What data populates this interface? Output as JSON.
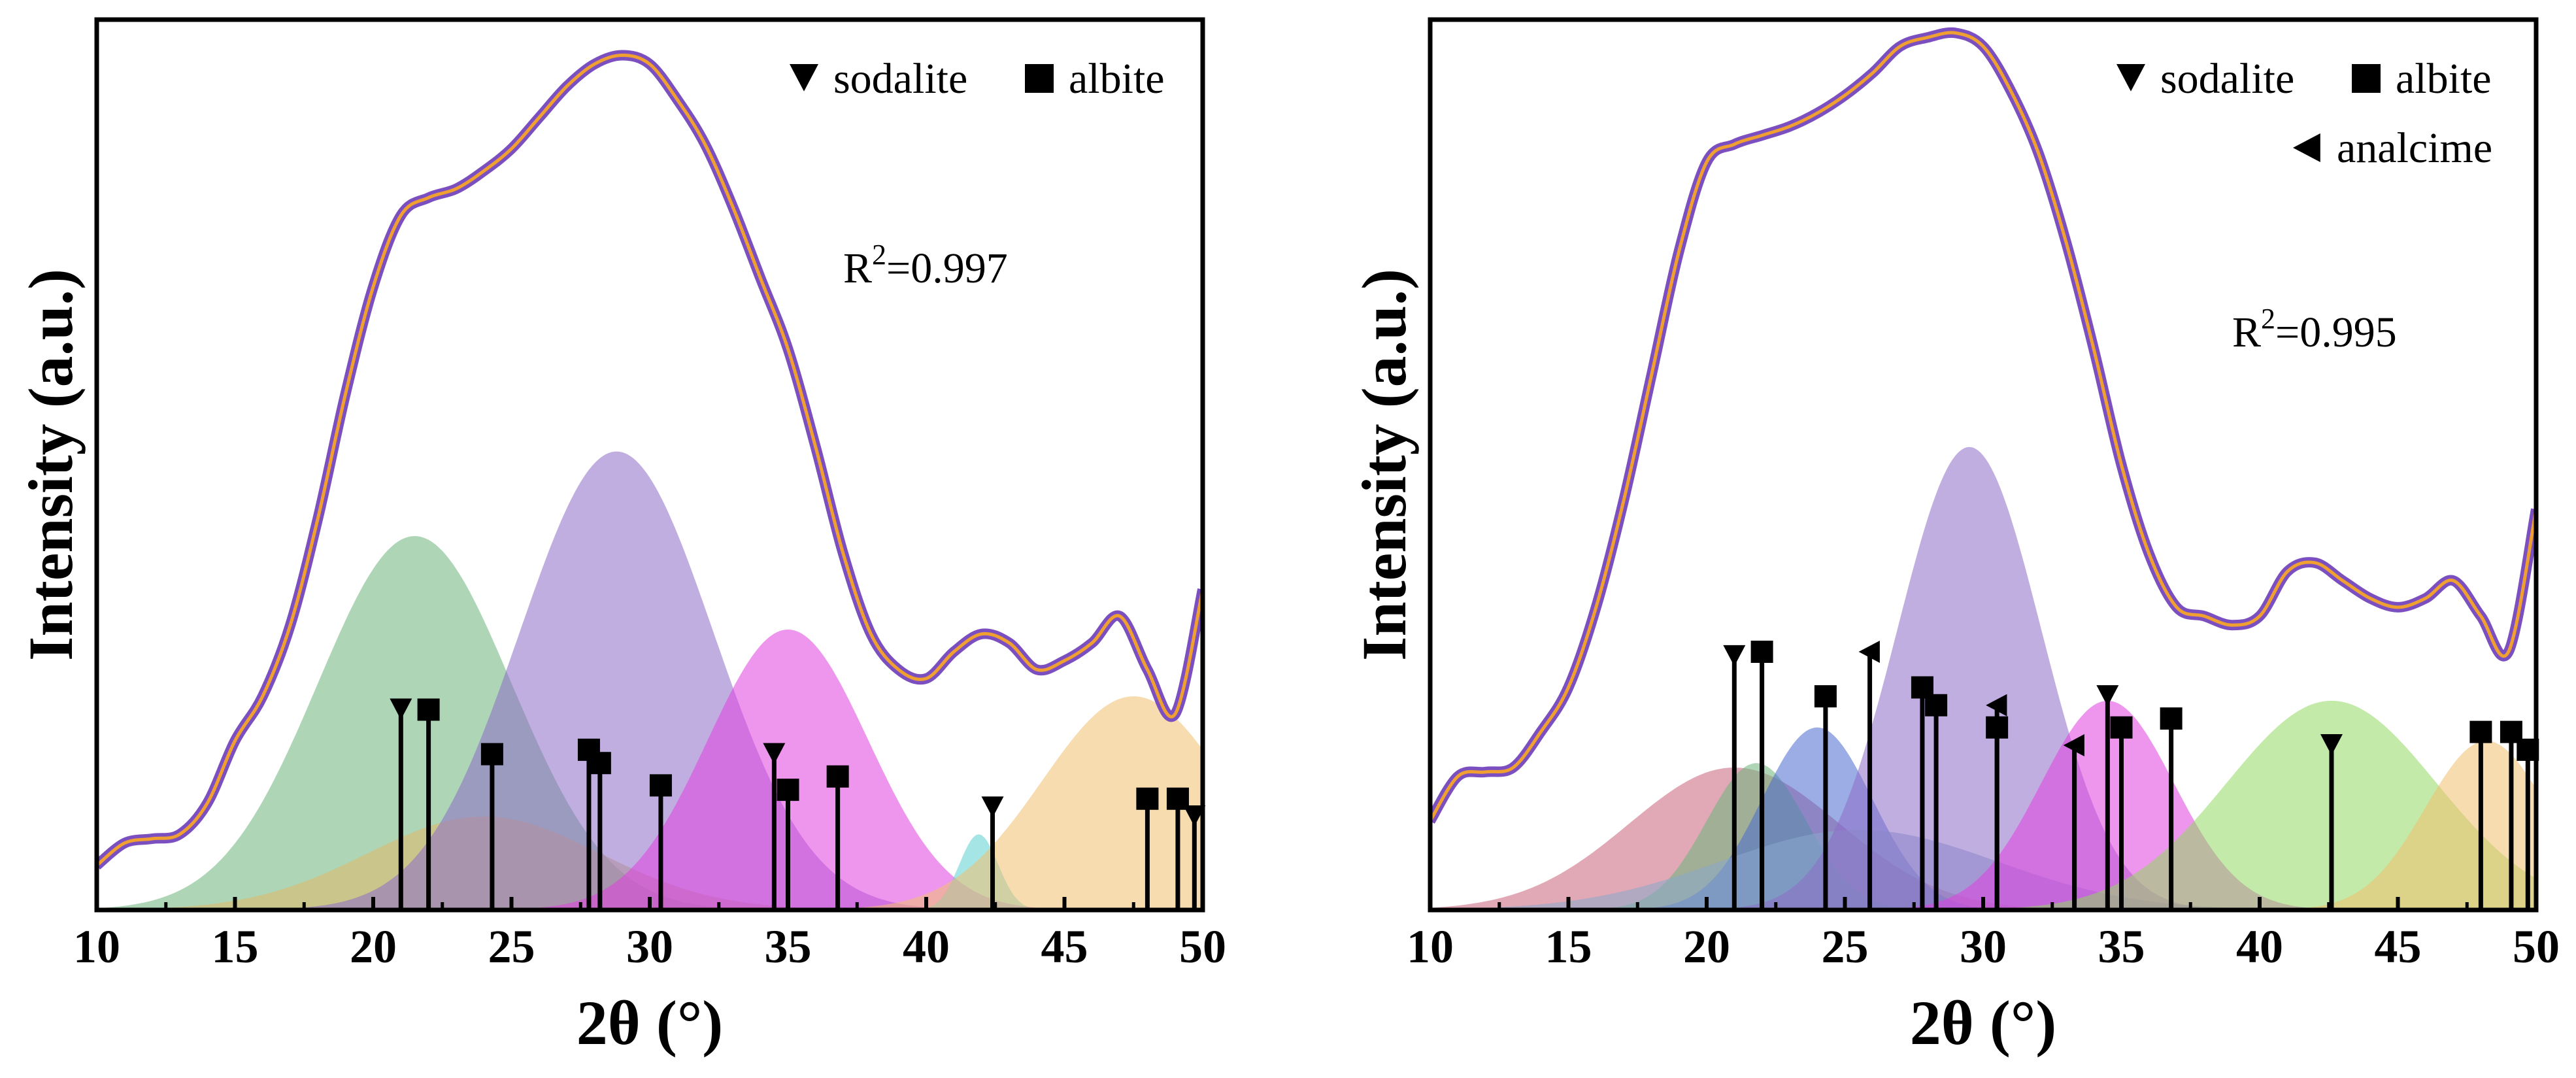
{
  "chart_data": [
    {
      "type": "area",
      "panel": "left",
      "xlabel": "2θ (°)",
      "ylabel": "Intensity (a.u.)",
      "xlim": [
        10,
        50
      ],
      "ylim": [
        0,
        100
      ],
      "xticks": [
        "10",
        "15",
        "20",
        "25",
        "30",
        "35",
        "40",
        "45",
        "50"
      ],
      "annotation": {
        "prefix": "R",
        "sup": "2",
        "value": "=0.997"
      },
      "legend": [
        {
          "marker": "down-triangle",
          "label": "sodalite"
        },
        {
          "marker": "square",
          "label": "albite"
        }
      ],
      "observed": {
        "color": "#7b4fc0",
        "x": [
          10,
          11,
          12,
          13,
          14,
          15,
          16,
          17,
          18,
          19,
          20,
          21,
          22,
          23,
          24,
          25,
          26,
          27,
          28,
          29,
          30,
          31,
          32,
          33,
          34,
          35,
          36,
          37,
          38,
          39,
          40,
          41,
          42,
          43,
          44,
          45,
          46,
          47,
          48,
          49,
          50
        ],
        "y": [
          5,
          7.5,
          8,
          8.5,
          12,
          19,
          24,
          32,
          44,
          58,
          70,
          78,
          80,
          81,
          83,
          85.5,
          89,
          92.5,
          95,
          96,
          95,
          91,
          86,
          79,
          71,
          63,
          52,
          40,
          31,
          27,
          26,
          29,
          31,
          30,
          27,
          28,
          30,
          33,
          27,
          22,
          36
        ]
      },
      "fit": {
        "color": "#f0a030"
      },
      "peaks": [
        {
          "center": 21.5,
          "sigma": 3.5,
          "amplitude": 42,
          "color": "#6cb47a"
        },
        {
          "center": 24.0,
          "sigma": 4.2,
          "amplitude": 10.5,
          "color": "#e0b868"
        },
        {
          "center": 28.8,
          "sigma": 3.5,
          "amplitude": 51.5,
          "color": "#8d6bc8"
        },
        {
          "center": 35.0,
          "sigma": 2.9,
          "amplitude": 31.5,
          "color": "#e040e0"
        },
        {
          "center": 41.9,
          "sigma": 0.7,
          "amplitude": 8.5,
          "color": "#5ccfcf"
        },
        {
          "center": 47.5,
          "sigma": 3.3,
          "amplitude": 24,
          "color": "#f0c070"
        }
      ],
      "markers": [
        {
          "phase": "sodalite",
          "x": 21.0,
          "height": 22.5
        },
        {
          "phase": "albite",
          "x": 22.0,
          "height": 22.5
        },
        {
          "phase": "albite",
          "x": 24.3,
          "height": 17.5
        },
        {
          "phase": "albite",
          "x": 27.8,
          "height": 18
        },
        {
          "phase": "albite",
          "x": 28.2,
          "height": 16.5
        },
        {
          "phase": "albite",
          "x": 30.4,
          "height": 14
        },
        {
          "phase": "sodalite",
          "x": 34.5,
          "height": 17.5
        },
        {
          "phase": "albite",
          "x": 35.0,
          "height": 13.5
        },
        {
          "phase": "albite",
          "x": 36.8,
          "height": 15
        },
        {
          "phase": "sodalite",
          "x": 42.4,
          "height": 11.5
        },
        {
          "phase": "albite",
          "x": 48.0,
          "height": 12.5
        },
        {
          "phase": "albite",
          "x": 49.1,
          "height": 12.5
        },
        {
          "phase": "sodalite",
          "x": 49.7,
          "height": 10.5
        }
      ]
    },
    {
      "type": "area",
      "panel": "right",
      "xlabel": "2θ (°)",
      "ylabel": "Intensity (a.u.)",
      "xlim": [
        10,
        50
      ],
      "ylim": [
        0,
        100
      ],
      "xticks": [
        "10",
        "15",
        "20",
        "25",
        "30",
        "35",
        "40",
        "45",
        "50"
      ],
      "annotation": {
        "prefix": "R",
        "sup": "2",
        "value": "=0.995"
      },
      "legend": [
        {
          "marker": "down-triangle",
          "label": "sodalite"
        },
        {
          "marker": "square",
          "label": "albite"
        },
        {
          "marker": "left-triangle",
          "label": "analcime"
        }
      ],
      "observed": {
        "color": "#7b4fc0",
        "x": [
          10,
          11,
          12,
          13,
          14,
          15,
          16,
          17,
          18,
          19,
          20,
          21,
          22,
          23,
          24,
          25,
          26,
          27,
          28,
          29,
          30,
          31,
          32,
          33,
          34,
          35,
          36,
          37,
          38,
          39,
          40,
          41,
          42,
          43,
          44,
          45,
          46,
          47,
          48,
          49,
          50
        ],
        "y": [
          10,
          15,
          15.5,
          16,
          20,
          25,
          34,
          46,
          60,
          74,
          84,
          86,
          87,
          88,
          89.5,
          91.5,
          94,
          97,
          98,
          98.5,
          97,
          92,
          85,
          75,
          63,
          50,
          40,
          34,
          33,
          32,
          33,
          38,
          39,
          37,
          35,
          34,
          35,
          37,
          33,
          29,
          45
        ]
      },
      "fit": {
        "color": "#f0a030"
      },
      "peaks": [
        {
          "center": 21.0,
          "sigma": 3.8,
          "amplitude": 16,
          "color": "#c8607a"
        },
        {
          "center": 21.8,
          "sigma": 1.8,
          "amplitude": 16.5,
          "color": "#6cb47a"
        },
        {
          "center": 24.0,
          "sigma": 2.0,
          "amplitude": 20.5,
          "color": "#4a6ad0"
        },
        {
          "center": 25.5,
          "sigma": 5.0,
          "amplitude": 9,
          "color": "#8aa8cc"
        },
        {
          "center": 29.5,
          "sigma": 2.6,
          "amplitude": 52,
          "color": "#8d6bc8"
        },
        {
          "center": 34.5,
          "sigma": 2.4,
          "amplitude": 23.5,
          "color": "#e040e0"
        },
        {
          "center": 42.6,
          "sigma": 3.8,
          "amplitude": 23.5,
          "color": "#92d860"
        },
        {
          "center": 48.2,
          "sigma": 2.2,
          "amplitude": 19,
          "color": "#f0c070"
        }
      ],
      "markers": [
        {
          "phase": "sodalite",
          "x": 21.0,
          "height": 28.5
        },
        {
          "phase": "albite",
          "x": 22.0,
          "height": 29
        },
        {
          "phase": "albite",
          "x": 24.3,
          "height": 24
        },
        {
          "phase": "analcime",
          "x": 25.9,
          "height": 29
        },
        {
          "phase": "albite",
          "x": 27.8,
          "height": 25
        },
        {
          "phase": "albite",
          "x": 28.3,
          "height": 23
        },
        {
          "phase": "analcime",
          "x": 30.5,
          "height": 23
        },
        {
          "phase": "albite",
          "x": 30.5,
          "height": 20.5
        },
        {
          "phase": "analcime",
          "x": 33.3,
          "height": 18.5
        },
        {
          "phase": "sodalite",
          "x": 34.5,
          "height": 24
        },
        {
          "phase": "albite",
          "x": 35.0,
          "height": 20.5
        },
        {
          "phase": "albite",
          "x": 36.8,
          "height": 21.5
        },
        {
          "phase": "sodalite",
          "x": 42.6,
          "height": 18.5
        },
        {
          "phase": "albite",
          "x": 48.0,
          "height": 20
        },
        {
          "phase": "albite",
          "x": 49.1,
          "height": 20
        },
        {
          "phase": "albite",
          "x": 49.7,
          "height": 18
        }
      ]
    }
  ]
}
